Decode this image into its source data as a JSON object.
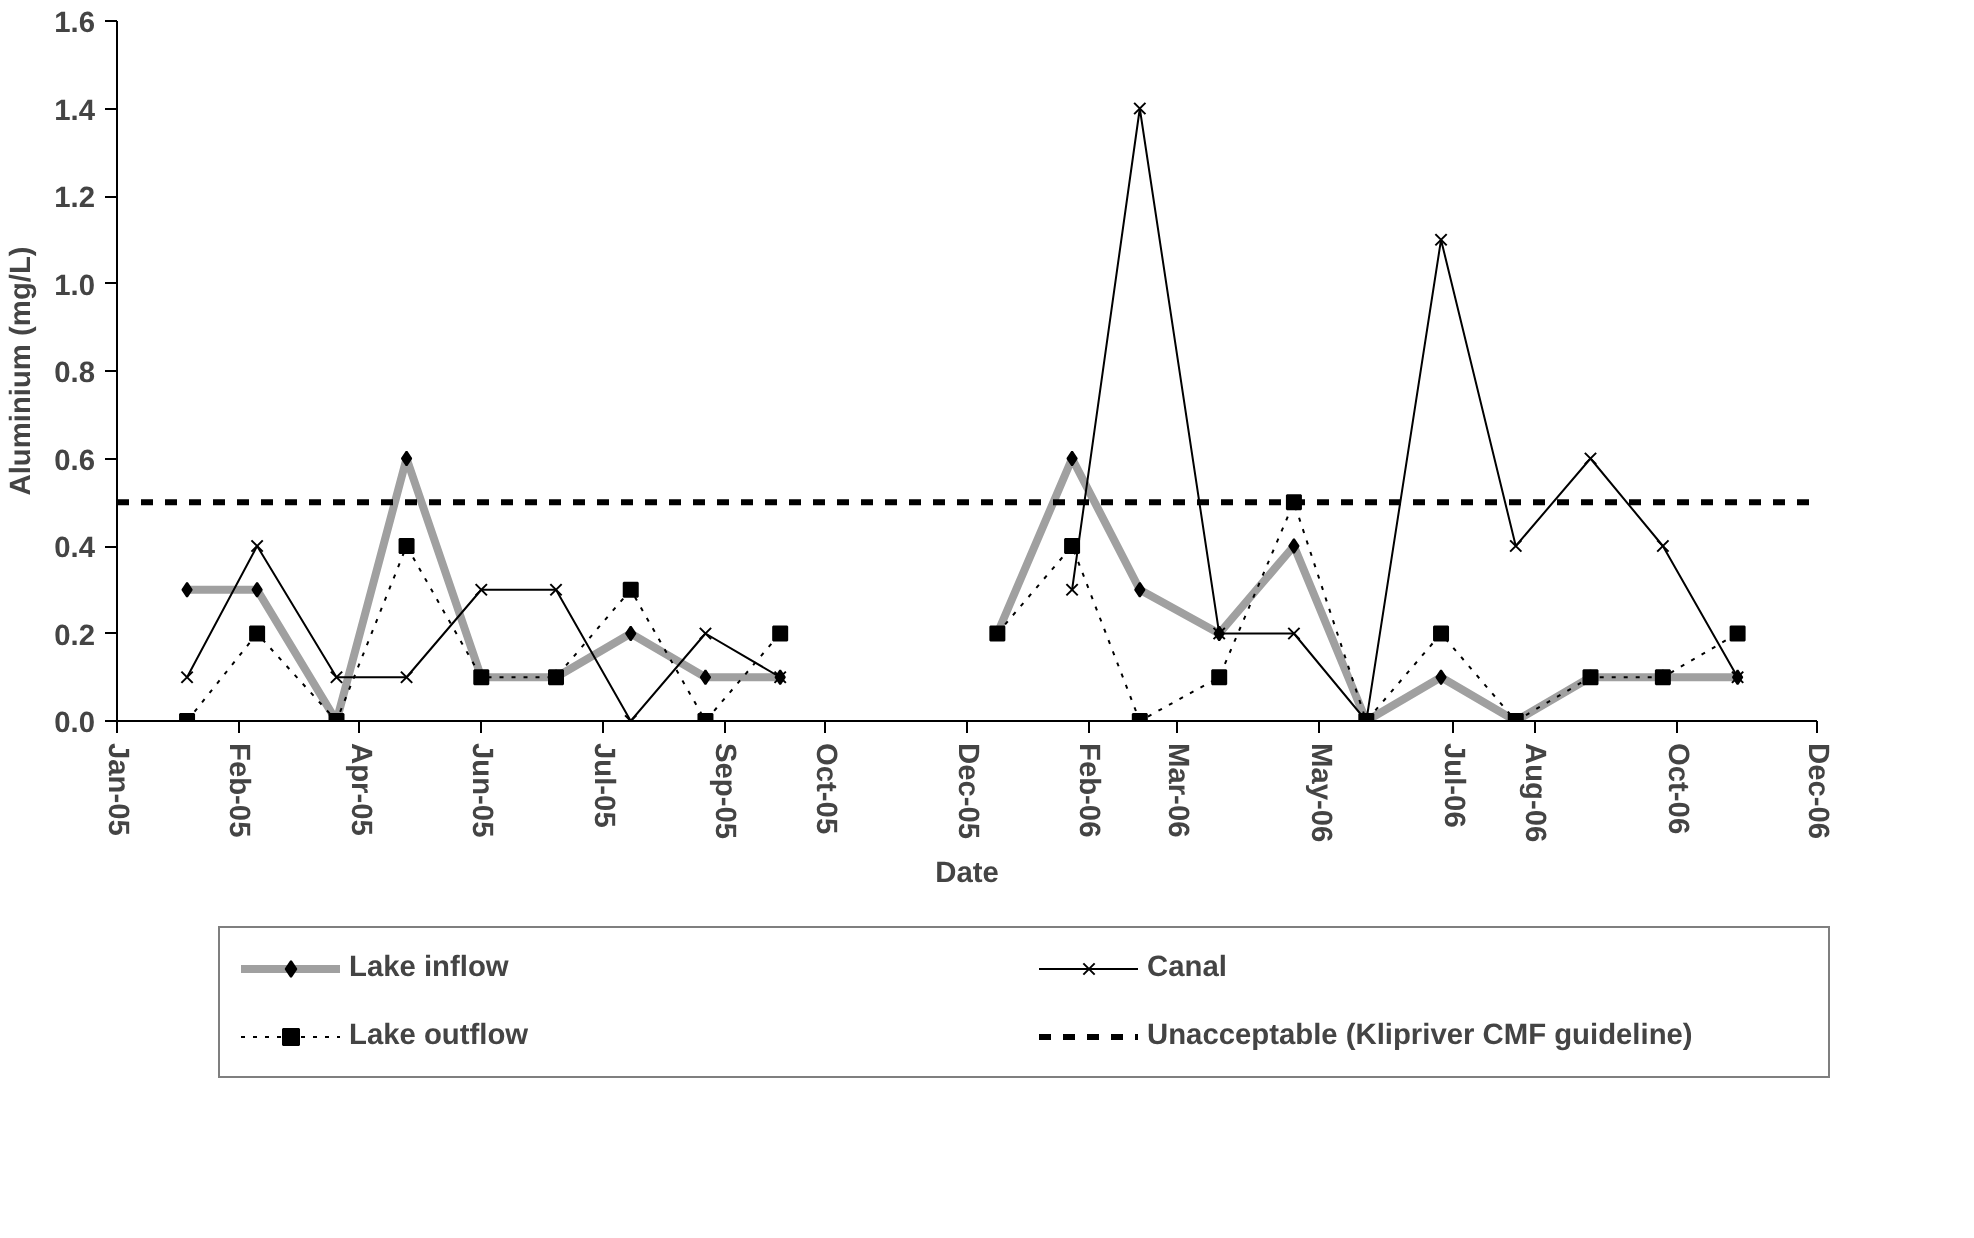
{
  "chart_data": {
    "type": "line",
    "xlabel": "Date",
    "ylabel": "Aluminium (mg/L)",
    "x": [
      "2005-01-31",
      "2005-03-02",
      "2005-04-05",
      "2005-05-05",
      "2005-06-06",
      "2005-07-08",
      "2005-08-09",
      "2005-09-10",
      "2005-10-12",
      "2005-12-01",
      "2006-01-13",
      "2006-02-14",
      "2006-03-15",
      "2006-04-18",
      "2006-05-20",
      "2006-06-20",
      "2006-07-22",
      "2006-08-23",
      "2006-09-24",
      "2006-10-25",
      "2006-11-26"
    ],
    "series": [
      {
        "name": "Lake inflow",
        "color": "#a0a0a0",
        "marker": "diamond",
        "line_style": "solid",
        "values": [
          0.3,
          0.3,
          0.0,
          0.6,
          0.1,
          0.1,
          0.2,
          0.1,
          0.1,
          null,
          0.2,
          0.6,
          0.3,
          0.2,
          0.4,
          0.0,
          0.1,
          0.0,
          0.1,
          0.1,
          0.1
        ]
      },
      {
        "name": "Lake outflow",
        "color": "#000000",
        "marker": "square",
        "line_style": "dotted",
        "values": [
          0.0,
          0.2,
          0.0,
          0.4,
          0.1,
          0.1,
          0.3,
          0.0,
          0.2,
          null,
          0.2,
          0.4,
          0.0,
          0.1,
          0.5,
          0.0,
          0.2,
          0.0,
          0.1,
          0.1,
          0.2
        ]
      },
      {
        "name": "Canal",
        "color": "#000000",
        "marker": "cross",
        "line_style": "solid",
        "values": [
          0.1,
          0.4,
          0.1,
          0.1,
          0.3,
          0.3,
          0.0,
          0.2,
          0.1,
          null,
          null,
          0.3,
          1.4,
          0.2,
          0.2,
          0.0,
          1.1,
          0.4,
          0.6,
          0.4,
          0.1
        ]
      }
    ],
    "ref_lines": [
      {
        "axis": "y",
        "value": 0.5,
        "label": "Unacceptable (Klipriver CMF guideline)",
        "color": "#000000",
        "line_style": "dashed"
      }
    ],
    "xlim": [
      "2005-01-01",
      "2006-12-30"
    ],
    "xticks": [
      {
        "value": "2005-01-01",
        "label": "Jan-05"
      },
      {
        "value": "2005-02-22",
        "label": "Feb-05"
      },
      {
        "value": "2005-04-15",
        "label": "Apr-05"
      },
      {
        "value": "2005-06-06",
        "label": "Jun-05"
      },
      {
        "value": "2005-07-28",
        "label": "Jul-05"
      },
      {
        "value": "2005-09-18",
        "label": "Sep-05"
      },
      {
        "value": "2005-10-31",
        "label": "Oct-05"
      },
      {
        "value": "2005-12-31",
        "label": "Dec-05"
      },
      {
        "value": "2006-02-21",
        "label": "Feb-06"
      },
      {
        "value": "2006-03-31",
        "label": "Mar-06"
      },
      {
        "value": "2006-05-31",
        "label": "May-06"
      },
      {
        "value": "2006-07-27",
        "label": "Jul-06"
      },
      {
        "value": "2006-08-31",
        "label": "Aug-06"
      },
      {
        "value": "2006-10-31",
        "label": "Oct-06"
      },
      {
        "value": "2006-12-30",
        "label": "Dec-06"
      }
    ],
    "ylim": [
      0,
      1.6
    ],
    "yticks": [
      {
        "value": 0,
        "label": "0.0"
      },
      {
        "value": 0.2,
        "label": "0.2"
      },
      {
        "value": 0.4,
        "label": "0.4"
      },
      {
        "value": 0.6,
        "label": "0.6"
      },
      {
        "value": 0.8,
        "label": "0.8"
      },
      {
        "value": 1.0,
        "label": "1.0"
      },
      {
        "value": 1.2,
        "label": "1.2"
      },
      {
        "value": 1.4,
        "label": "1.4"
      },
      {
        "value": 1.6,
        "label": "1.6"
      }
    ],
    "grid": false,
    "legend": "bottom"
  }
}
